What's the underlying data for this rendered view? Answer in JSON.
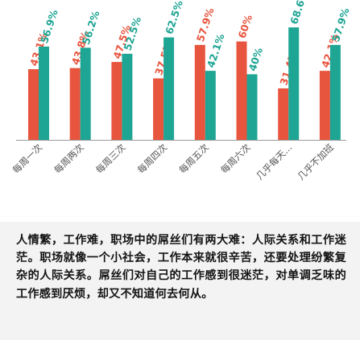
{
  "chart_data": {
    "type": "bar",
    "categories": [
      "每周一次",
      "每周两次",
      "每周三次",
      "每周四次",
      "每周五次",
      "每周六次",
      "几乎每天...",
      "几乎不加班"
    ],
    "series": [
      {
        "values": [
          43.1,
          43.8,
          47.5,
          37.5,
          57.9,
          60,
          31.4,
          42.1
        ],
        "labels": [
          "43.1%",
          "43.8%",
          "47.5%",
          "37.5%",
          "57.9%",
          "60%",
          "31.4%",
          "42.1%"
        ]
      },
      {
        "values": [
          56.9,
          56.2,
          52.5,
          62.5,
          42.1,
          40,
          68.6,
          57.9
        ],
        "labels": [
          "56.9%",
          "56.2%",
          "52.5%",
          "62.5%",
          "42.1%",
          "40%",
          "68.6%",
          "57.9%"
        ]
      }
    ],
    "ylim": [
      0,
      70
    ],
    "colors": [
      "#e8553e",
      "#1fa594"
    ],
    "grid": false,
    "legend": "none"
  },
  "text": "人情繁，工作难，职场中的屌丝们有两大难：人际关系和工作迷茫。职场就像一个小社会，工作本来就很辛苦，还要处理纷繁复杂的人际关系。屌丝们对自己的工作感到很迷茫，对单调乏味的工作感到厌烦，却又不知道何去何从。"
}
